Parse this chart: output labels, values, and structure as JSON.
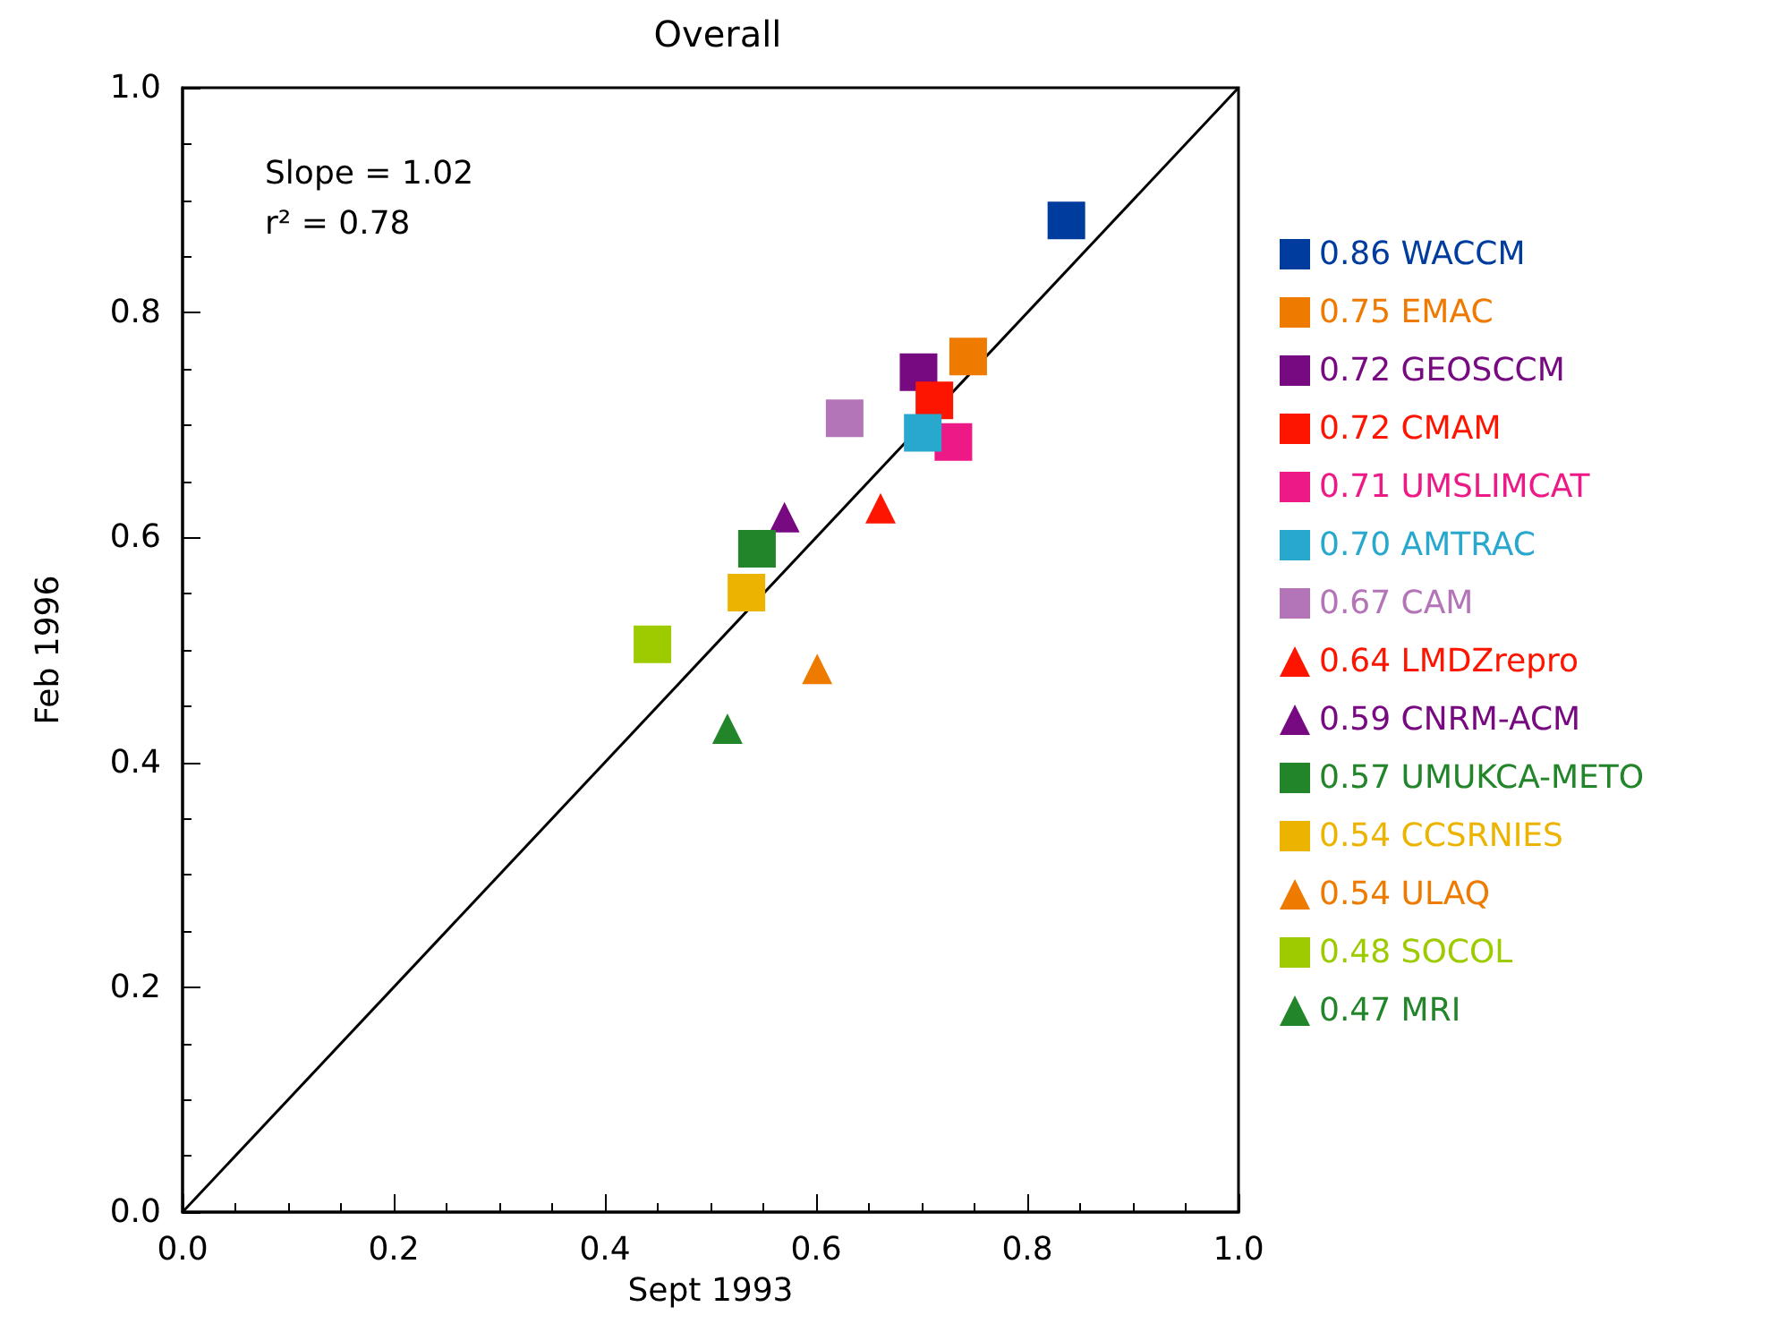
{
  "chart_data": {
    "type": "scatter",
    "title": "Overall",
    "xlabel": "Sept 1993",
    "ylabel": "Feb 1996",
    "annotations": [
      "Slope = 1.02",
      "r² = 0.78"
    ],
    "xlim": [
      0,
      1
    ],
    "ylim": [
      0,
      1
    ],
    "xticks": [
      {
        "value": 0,
        "label": "0.0"
      },
      0.2,
      0.4,
      0.6,
      0.8,
      {
        "value": 1,
        "label": "1.0"
      }
    ],
    "yticks": [
      {
        "value": 0,
        "label": "0.0"
      },
      0.2,
      0.4,
      0.6,
      0.8,
      {
        "value": 1,
        "label": "1.0"
      }
    ],
    "grid": false,
    "legend": "right",
    "series": [
      {
        "name": "0.86 WACCM",
        "color": "#003c9e",
        "marker": "square",
        "x": [
          0.837
        ],
        "values": [
          0.882
        ]
      },
      {
        "name": "0.75 EMAC",
        "color": "#ef7a00",
        "marker": "square",
        "x": [
          0.744
        ],
        "values": [
          0.761
        ]
      },
      {
        "name": "0.72 GEOSCCM",
        "color": "#770a80",
        "marker": "square",
        "x": [
          0.697
        ],
        "values": [
          0.747
        ]
      },
      {
        "name": "0.72 CMAM",
        "color": "#fd1500",
        "marker": "square",
        "x": [
          0.712
        ],
        "values": [
          0.722
        ]
      },
      {
        "name": "0.71 UMSLIMCAT",
        "color": "#ec1987",
        "marker": "square",
        "x": [
          0.73
        ],
        "values": [
          0.685
        ]
      },
      {
        "name": "0.70 AMTRAC",
        "color": "#28a8cc",
        "marker": "square",
        "x": [
          0.701
        ],
        "values": [
          0.693
        ]
      },
      {
        "name": "0.67 CAM",
        "color": "#b474b8",
        "marker": "square",
        "x": [
          0.627
        ],
        "values": [
          0.706
        ]
      },
      {
        "name": "0.64 LMDZrepro",
        "color": "#fd1500",
        "marker": "triangle",
        "x": [
          0.661
        ],
        "values": [
          0.626
        ]
      },
      {
        "name": "0.59 CNRM-ACM",
        "color": "#770a80",
        "marker": "triangle",
        "x": [
          0.57
        ],
        "values": [
          0.618
        ]
      },
      {
        "name": "0.57 UMUKCA-METO",
        "color": "#22852a",
        "marker": "square",
        "x": [
          0.544
        ],
        "values": [
          0.59
        ]
      },
      {
        "name": "0.54 CCSRNIES",
        "color": "#ecb400",
        "marker": "square",
        "x": [
          0.534
        ],
        "values": [
          0.551
        ]
      },
      {
        "name": "0.54 ULAQ",
        "color": "#ef7a00",
        "marker": "triangle",
        "x": [
          0.601
        ],
        "values": [
          0.483
        ]
      },
      {
        "name": "0.48 SOCOL",
        "color": "#9ecb00",
        "marker": "square",
        "x": [
          0.445
        ],
        "values": [
          0.505
        ]
      },
      {
        "name": "0.47 MRI",
        "color": "#22852a",
        "marker": "triangle",
        "x": [
          0.516
        ],
        "values": [
          0.43
        ]
      },
      {
        "type": "line",
        "color": "#000000",
        "marker": "none",
        "line_style": "solid",
        "x": [
          0,
          1
        ],
        "values": [
          0,
          1
        ]
      }
    ]
  }
}
